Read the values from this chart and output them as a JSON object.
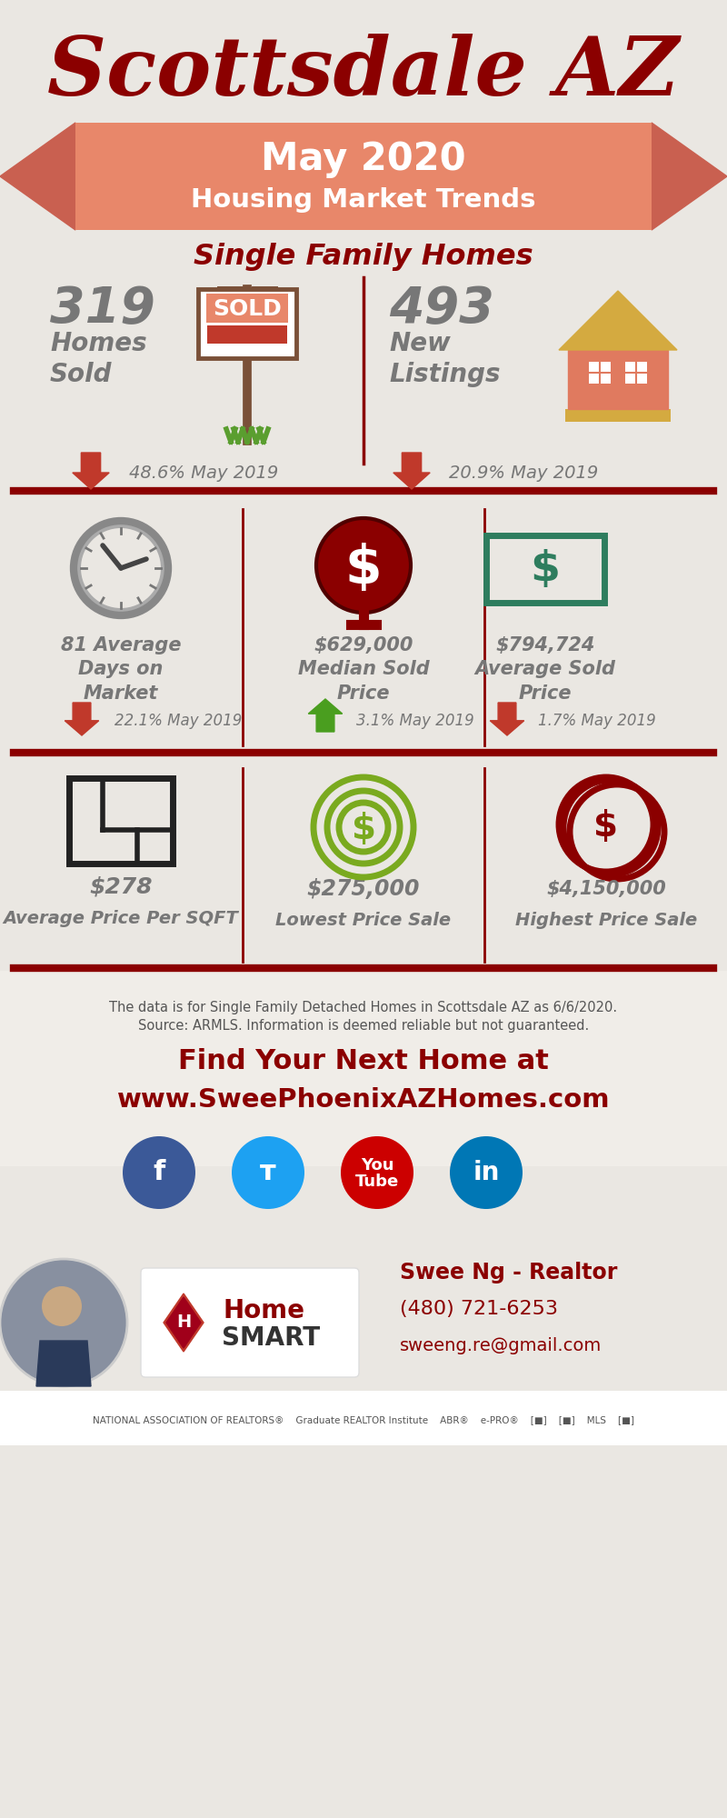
{
  "bg_color": "#eae7e2",
  "dark_red": "#8B0000",
  "medium_red": "#c0392b",
  "light_salmon": "#e8876a",
  "salmon_dark": "#c96050",
  "green_arrow": "#4a9e1f",
  "gray_text": "#777777",
  "teal": "#2e7d5e",
  "title": "Scottsdale AZ",
  "banner_line1": "May 2020",
  "banner_line2": "Housing Market Trends",
  "subtitle": "Single Family Homes",
  "stat1_num": "319",
  "stat1_label": "Homes\nSold",
  "stat1_pct": "48.6% May 2019",
  "stat2_num": "493",
  "stat2_label": "New\nListings",
  "stat2_pct": "20.9% May 2019",
  "stat3_num": "81 Average\nDays on\nMarket",
  "stat3_pct": "22.1% May 2019",
  "stat4_num": "$629,000\nMedian Sold\nPrice",
  "stat4_pct": "3.1% May 2019",
  "stat5_num": "$794,724\nAverage Sold\nPrice",
  "stat5_pct": "1.7% May 2019",
  "stat6_num": "$278",
  "stat6_label": "Average Price Per SQFT",
  "stat7_num": "$275,000",
  "stat7_label": "Lowest Price Sale",
  "stat8_num": "$4,150,000",
  "stat8_label": "Highest Price Sale",
  "footer_line1": "The data is for Single Family Detached Homes in Scottsdale AZ as 6/6/2020.",
  "footer_line2": "Source: ARMLS. Information is deemed reliable but not guaranteed.",
  "cta_line1": "Find Your Next Home at",
  "cta_line2": "www.SweePhoenixAZHomes.com",
  "contact_name": "Swee Ng - Realtor",
  "contact_phone": "(480) 721-6253",
  "contact_email": "sweeng.re@gmail.com",
  "section_divider_color": "#8B0000",
  "white": "#ffffff",
  "fb_color": "#3b5998",
  "tw_color": "#1da1f2",
  "yt_color": "#cc0000",
  "li_color": "#0077b5"
}
